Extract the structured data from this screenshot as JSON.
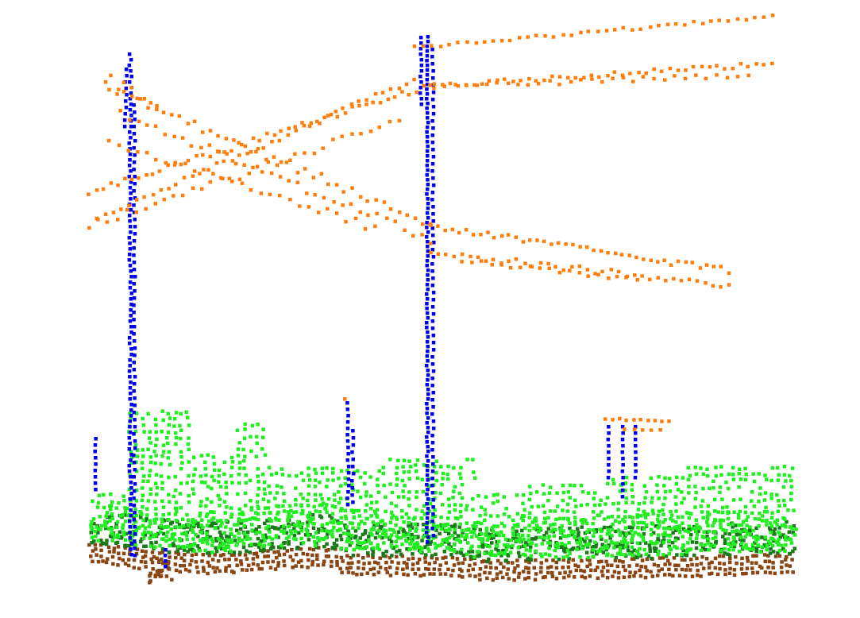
{
  "scene": {
    "background": "#ffffff",
    "classes": [
      {
        "key": "ground",
        "color": "#8b4513"
      },
      {
        "key": "low_vegetation",
        "color": "#1a7a1a"
      },
      {
        "key": "vegetation",
        "color": "#22ee22"
      },
      {
        "key": "pylon",
        "color": "#0000ee"
      },
      {
        "key": "power_line",
        "color": "#ff7f0e"
      }
    ]
  }
}
